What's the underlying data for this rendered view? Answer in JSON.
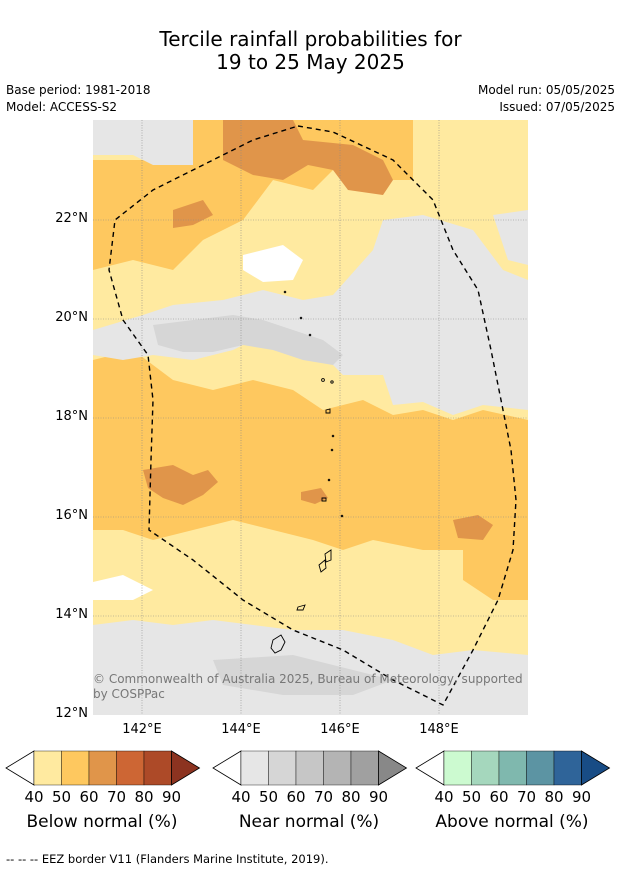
{
  "title": {
    "line1": "Tercile rainfall probabilities for",
    "line2": "19 to 25 May 2025"
  },
  "meta": {
    "base_period": "Base period: 1981-2018",
    "model": "Model: ACCESS-S2",
    "model_run": "Model run: 05/05/2025",
    "issued": "Issued: 07/05/2025"
  },
  "map": {
    "lat_labels": [
      "22°N",
      "20°N",
      "18°N",
      "16°N",
      "14°N",
      "12°N"
    ],
    "lon_labels": [
      "142°E",
      "144°E",
      "146°E",
      "148°E"
    ],
    "copyright_line1": "© Commonwealth of Australia 2025, Bureau of Meteorology, supported",
    "copyright_line2": "by COSPPac"
  },
  "colorbars": [
    {
      "title": "Below normal (%)",
      "ticks": [
        "40",
        "50",
        "60",
        "70",
        "80",
        "90"
      ],
      "colors": [
        "#ffeaa0",
        "#fec85f",
        "#e0954a",
        "#cd6634",
        "#ad4a28",
        "#8c3320"
      ]
    },
    {
      "title": "Near normal (%)",
      "ticks": [
        "40",
        "50",
        "60",
        "70",
        "80",
        "90"
      ],
      "colors": [
        "#e6e6e6",
        "#d6d6d6",
        "#c6c6c6",
        "#b4b4b4",
        "#a0a0a0",
        "#888888"
      ]
    },
    {
      "title": "Above normal (%)",
      "ticks": [
        "40",
        "50",
        "60",
        "70",
        "80",
        "90"
      ],
      "colors": [
        "#ccfad0",
        "#a5d7bd",
        "#7fb8ae",
        "#5c94a3",
        "#2f6499",
        "#184c85"
      ]
    }
  ],
  "footer": "--  --  -- EEZ border V11 (Flanders Marine Institute, 2019)."
}
